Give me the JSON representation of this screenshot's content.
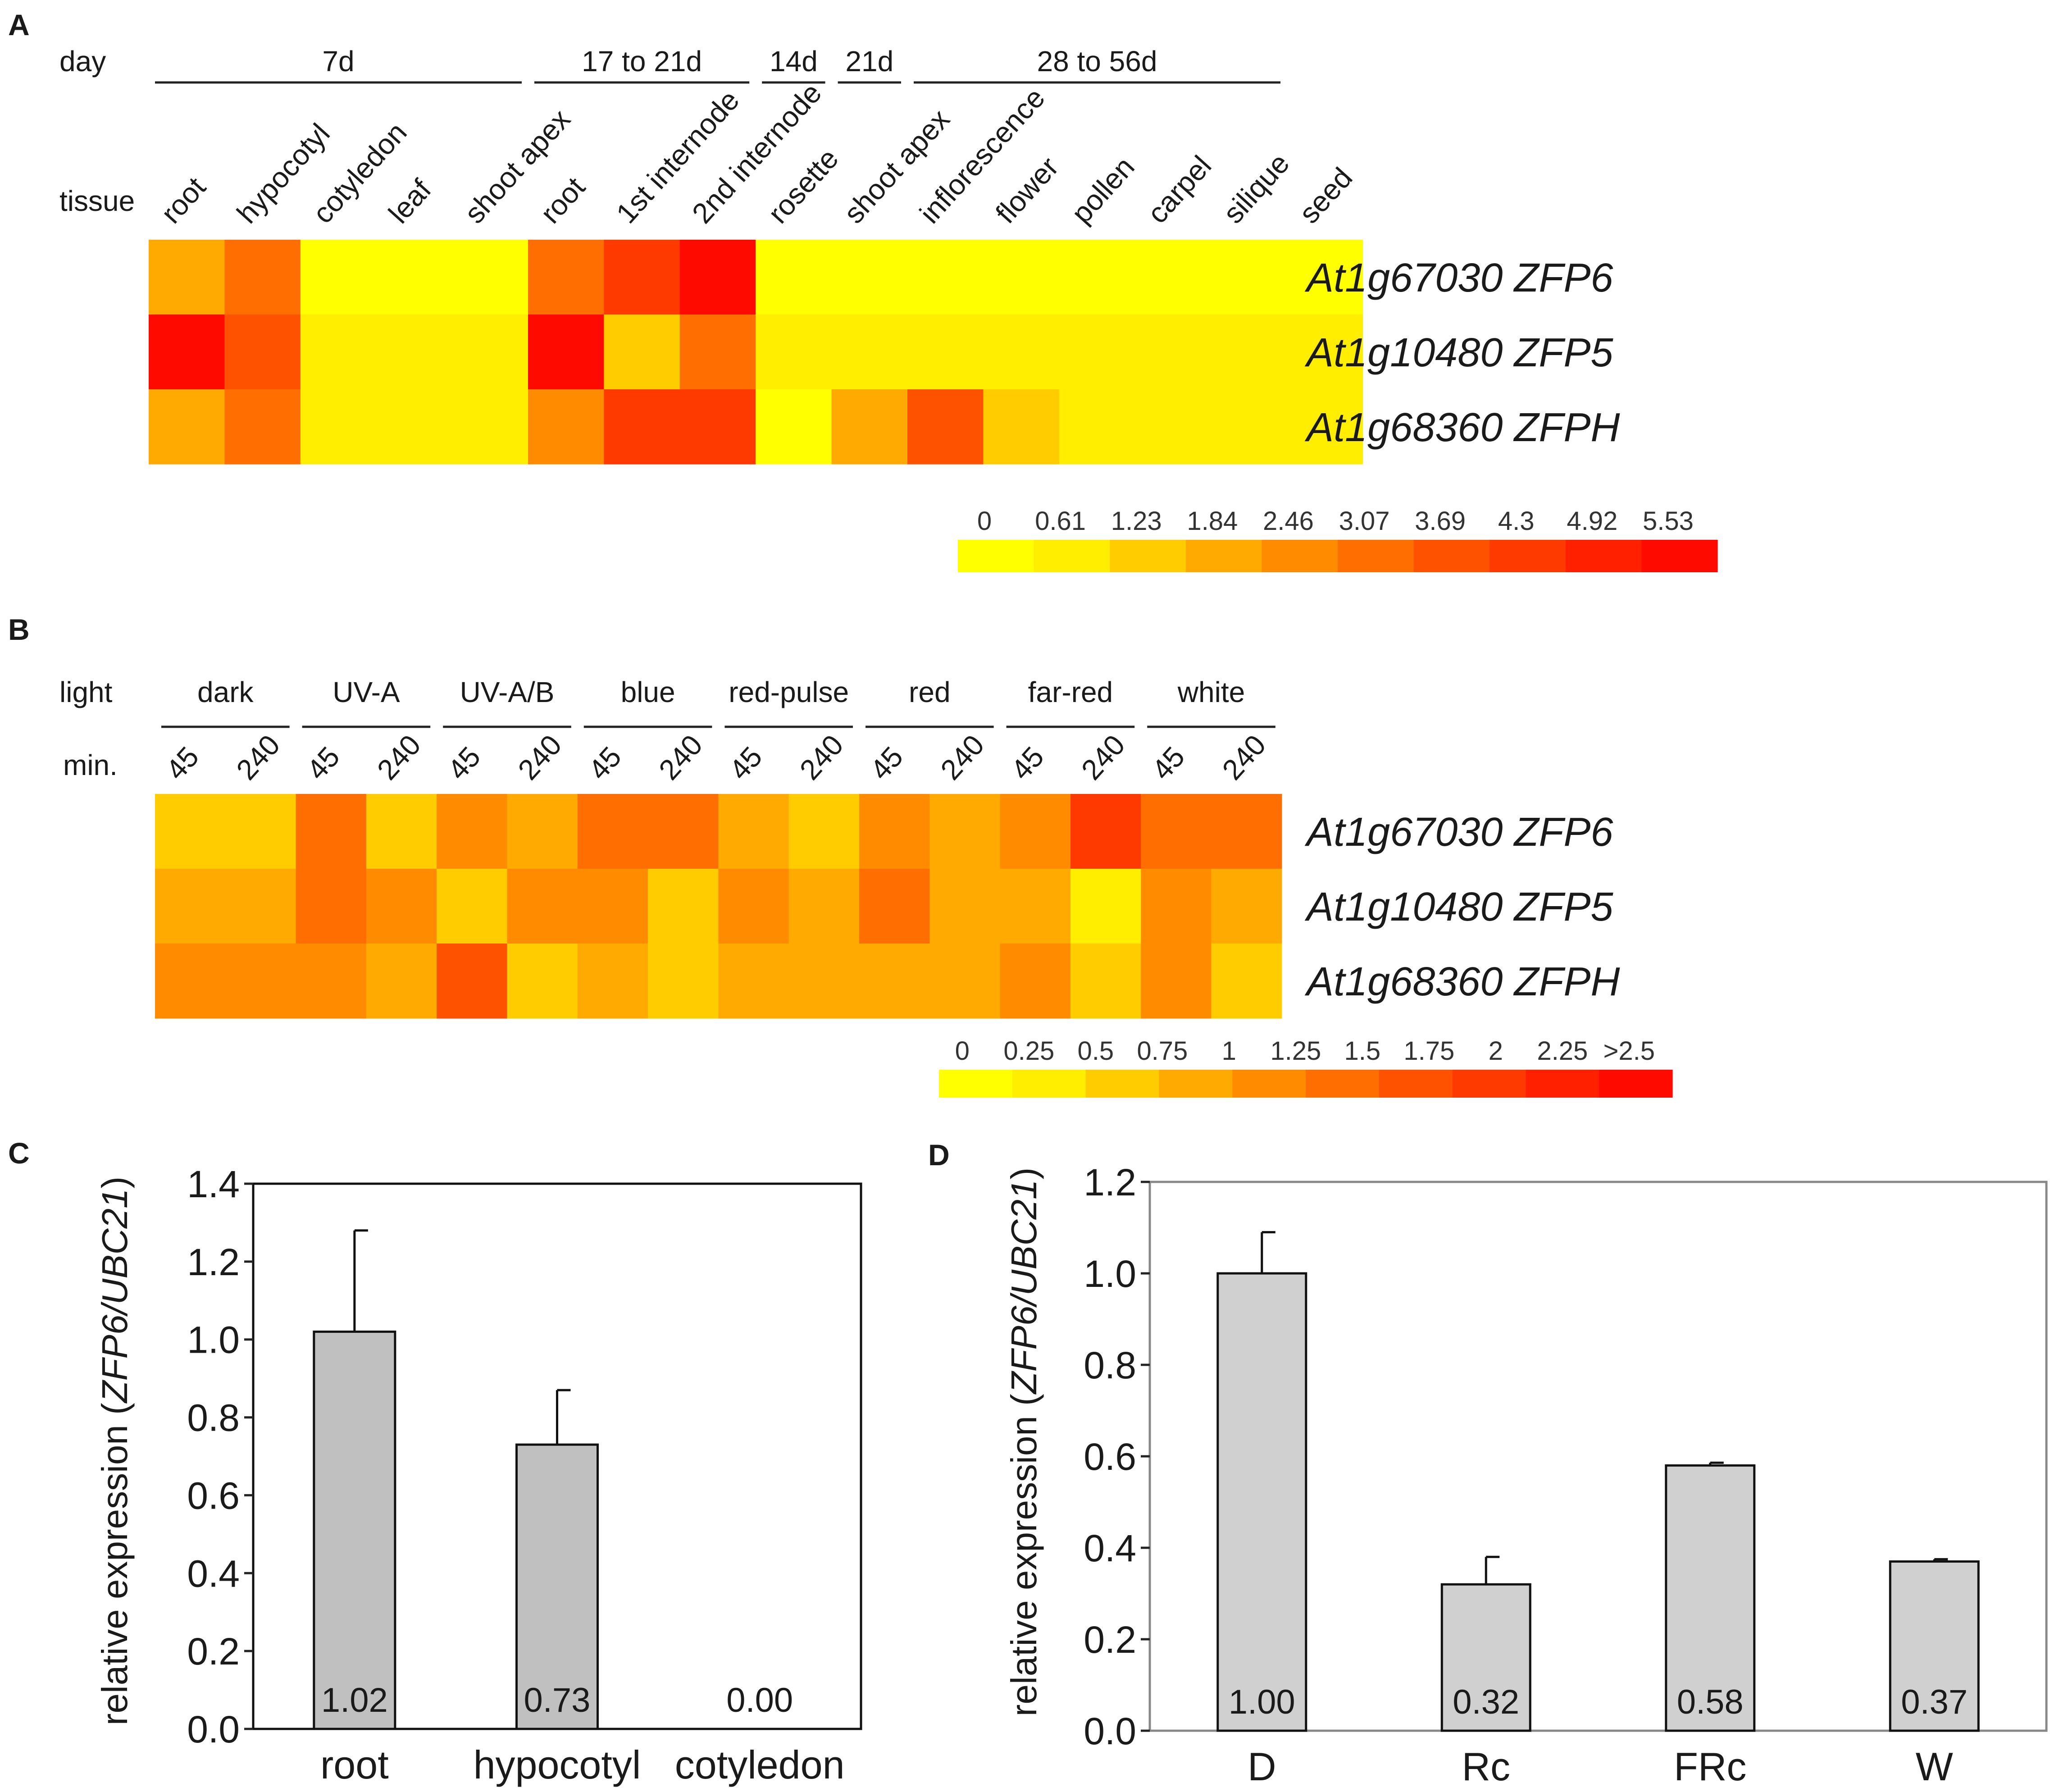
{
  "heatmap_palette": [
    "#FFFF00",
    "#FFEE00",
    "#FFCC00",
    "#FFAA00",
    "#FF8C00",
    "#FF6E00",
    "#FF5200",
    "#FF3A00",
    "#FF2000",
    "#FF0A00"
  ],
  "chart_data": [
    {
      "id": "A",
      "type": "heatmap",
      "panel_label": "A",
      "row_header_top": "day",
      "row_header_bottom": "tissue",
      "groups": [
        {
          "label": "7d",
          "span": 5
        },
        {
          "label": "17 to 21d",
          "span": 3
        },
        {
          "label": "14d",
          "span": 1
        },
        {
          "label": "21d",
          "span": 1
        },
        {
          "label": "28 to 56d",
          "span": 5
        }
      ],
      "columns": [
        "root",
        "hypocotyl",
        "cotyledon",
        "leaf",
        "shoot apex",
        "root",
        "1st internode",
        "2nd internode",
        "rosette",
        "shoot apex",
        "inflorescence",
        "flower",
        "pollen",
        "carpel",
        "silique",
        "seed"
      ],
      "rows": [
        "At1g67030 ZFP6",
        "At1g10480 ZFP5",
        "At1g68360 ZFPH"
      ],
      "values": [
        [
          2.0,
          2.8,
          0.3,
          0.3,
          0.3,
          3.0,
          4.2,
          5.4,
          0.3,
          0.3,
          0.3,
          0.3,
          0.3,
          0.3,
          0.3,
          0.3
        ],
        [
          5.4,
          3.4,
          0.7,
          0.7,
          0.7,
          5.53,
          1.6,
          3.0,
          0.9,
          0.6,
          0.6,
          0.6,
          0.6,
          0.6,
          0.6,
          0.6
        ],
        [
          2.2,
          2.8,
          0.6,
          0.6,
          1.0,
          2.6,
          4.4,
          4.2,
          0.5,
          1.8,
          3.6,
          1.3,
          0.8,
          0.6,
          0.6,
          0.6
        ]
      ],
      "scale_labels": [
        "0",
        "0.61",
        "1.23",
        "1.84",
        "2.46",
        "3.07",
        "3.69",
        "4.3",
        "4.92",
        "5.53"
      ],
      "scale_min": 0,
      "scale_max": 5.53
    },
    {
      "id": "B",
      "type": "heatmap",
      "panel_label": "B",
      "row_header_top": "light",
      "row_header_bottom": "min.",
      "groups": [
        {
          "label": "dark",
          "span": 2
        },
        {
          "label": "UV-A",
          "span": 2
        },
        {
          "label": "UV-A/B",
          "span": 2
        },
        {
          "label": "blue",
          "span": 2
        },
        {
          "label": "red-pulse",
          "span": 2
        },
        {
          "label": "red",
          "span": 2
        },
        {
          "label": "far-red",
          "span": 2
        },
        {
          "label": "white",
          "span": 2
        }
      ],
      "columns": [
        "45",
        "240",
        "45",
        "240",
        "45",
        "240",
        "45",
        "240",
        "45",
        "240",
        "45",
        "240",
        "45",
        "240",
        "45",
        "240"
      ],
      "rows": [
        "At1g67030 ZFP6",
        "At1g10480 ZFP5",
        "At1g68360 ZFPH"
      ],
      "values": [
        [
          0.55,
          0.55,
          1.35,
          0.55,
          1.2,
          0.8,
          1.25,
          1.45,
          0.85,
          0.6,
          1.05,
          0.95,
          1.0,
          1.75,
          1.25,
          1.25
        ],
        [
          0.9,
          0.95,
          1.35,
          1.2,
          0.6,
          1.0,
          1.2,
          0.55,
          1.05,
          0.9,
          1.25,
          0.95,
          0.95,
          0.45,
          1.1,
          0.8
        ],
        [
          1.2,
          1.1,
          1.05,
          0.95,
          1.7,
          0.5,
          0.9,
          0.55,
          0.8,
          0.85,
          0.95,
          0.95,
          1.0,
          0.55,
          1.05,
          0.7
        ]
      ],
      "scale_labels": [
        "0",
        "0.25",
        "0.5",
        "0.75",
        "1",
        "1.25",
        "1.5",
        "1.75",
        "2",
        "2.25",
        ">2.5"
      ],
      "scale_min": 0,
      "scale_max": 2.5
    },
    {
      "id": "C",
      "type": "bar",
      "panel_label": "C",
      "categories": [
        "root",
        "hypocotyl",
        "cotyledon"
      ],
      "values": [
        1.02,
        0.73,
        0.0
      ],
      "value_labels": [
        "1.02",
        "0.73",
        "0.00"
      ],
      "errors": [
        0.26,
        0.14,
        0.0
      ],
      "ylim": [
        0,
        1.4
      ],
      "yticks": [
        "0.0",
        "0.2",
        "0.4",
        "0.6",
        "0.8",
        "1.0",
        "1.2",
        "1.4"
      ],
      "ytick_values": [
        0,
        0.2,
        0.4,
        0.6,
        0.8,
        1.0,
        1.2,
        1.4
      ],
      "ylabel_prefix": "relative expression (",
      "ylabel_italic": "ZFP6/UBC21",
      "ylabel_suffix": ")",
      "bar_color": "#C0C0C0"
    },
    {
      "id": "D",
      "type": "bar",
      "panel_label": "D",
      "categories": [
        "D",
        "Rc",
        "FRc",
        "W"
      ],
      "values": [
        1.0,
        0.32,
        0.58,
        0.37
      ],
      "value_labels": [
        "1.00",
        "0.32",
        "0.58",
        "0.37"
      ],
      "errors": [
        0.09,
        0.06,
        0.006,
        0.005
      ],
      "ylim": [
        0,
        1.2
      ],
      "yticks": [
        "0.0",
        "0.2",
        "0.4",
        "0.6",
        "0.8",
        "1.0",
        "1.2"
      ],
      "ytick_values": [
        0,
        0.2,
        0.4,
        0.6,
        0.8,
        1.0,
        1.2
      ],
      "ylabel_prefix": "relative expression (",
      "ylabel_italic": "ZFP6/UBC21",
      "ylabel_suffix": ")",
      "bar_color": "#D0D0D0"
    }
  ]
}
